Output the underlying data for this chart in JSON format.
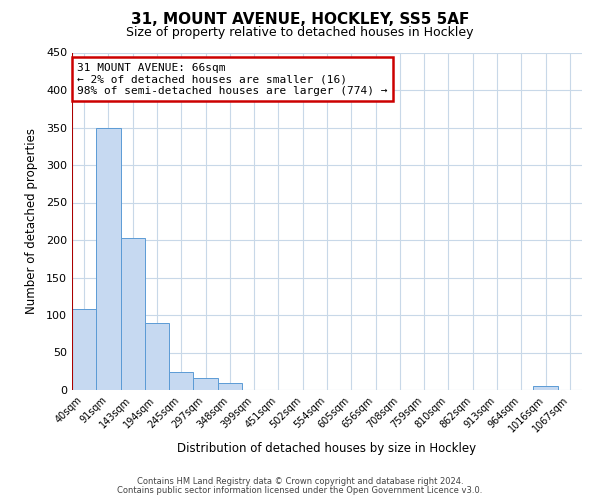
{
  "title": "31, MOUNT AVENUE, HOCKLEY, SS5 5AF",
  "subtitle": "Size of property relative to detached houses in Hockley",
  "xlabel": "Distribution of detached houses by size in Hockley",
  "ylabel": "Number of detached properties",
  "bar_labels": [
    "40sqm",
    "91sqm",
    "143sqm",
    "194sqm",
    "245sqm",
    "297sqm",
    "348sqm",
    "399sqm",
    "451sqm",
    "502sqm",
    "554sqm",
    "605sqm",
    "656sqm",
    "708sqm",
    "759sqm",
    "810sqm",
    "862sqm",
    "913sqm",
    "964sqm",
    "1016sqm",
    "1067sqm"
  ],
  "bar_values": [
    108,
    350,
    203,
    90,
    24,
    16,
    9,
    0,
    0,
    0,
    0,
    0,
    0,
    0,
    0,
    0,
    0,
    0,
    0,
    5,
    0
  ],
  "bar_color": "#c6d9f1",
  "bar_edge_color": "#5b9bd5",
  "ylim": [
    0,
    450
  ],
  "yticks": [
    0,
    50,
    100,
    150,
    200,
    250,
    300,
    350,
    400,
    450
  ],
  "vline_color": "#aa0000",
  "annotation_title": "31 MOUNT AVENUE: 66sqm",
  "annotation_line1": "← 2% of detached houses are smaller (16)",
  "annotation_line2": "98% of semi-detached houses are larger (774) →",
  "annotation_box_color": "#ffffff",
  "annotation_box_edge": "#cc0000",
  "footer1": "Contains HM Land Registry data © Crown copyright and database right 2024.",
  "footer2": "Contains public sector information licensed under the Open Government Licence v3.0.",
  "background_color": "#ffffff",
  "grid_color": "#c8d8e8"
}
